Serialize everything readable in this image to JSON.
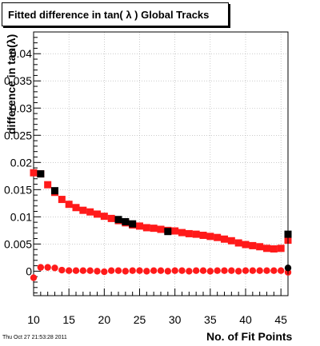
{
  "header": {
    "title": "Fitted difference in tan( λ )  Global Tracks",
    "timestamp": "Thu Oct 27 21:53:28 2011"
  },
  "colors": {
    "series_red": "#ff1a1a",
    "series_black": "#000000",
    "frame": "#000000",
    "grid": "#aaaaaa"
  },
  "chart_data": {
    "type": "scatter",
    "title": "Fitted difference in tan( λ )  Global Tracks",
    "xlabel": "No. of Fit Points",
    "ylabel": "difference in tan(λ)",
    "xlim": [
      10,
      46
    ],
    "ylim": [
      -0.0045,
      0.044
    ],
    "grid": true,
    "x_ticks": [
      10,
      15,
      20,
      25,
      30,
      35,
      40,
      45
    ],
    "x_tick_labels": [
      "10",
      "15",
      "20",
      "25",
      "30",
      "35",
      "40",
      "45"
    ],
    "y_ticks": [
      0,
      0.005,
      0.01,
      0.015,
      0.02,
      0.025,
      0.03,
      0.035,
      0.04
    ],
    "y_tick_labels": [
      "0",
      "0.005",
      "0.01",
      "0.015",
      "0.02",
      "0.025",
      "0.03",
      "0.035",
      "0.04"
    ],
    "series": [
      {
        "marker": "square",
        "color": "#ff1a1a",
        "x": [
          10,
          11,
          12,
          13,
          14,
          15,
          16,
          17,
          18,
          19,
          20,
          21,
          22,
          23,
          24,
          25,
          26,
          27,
          28,
          29,
          30,
          31,
          32,
          33,
          34,
          35,
          36,
          37,
          38,
          39,
          40,
          41,
          42,
          43,
          44,
          45,
          46
        ],
        "y": [
          0.0181,
          0.0179,
          0.0159,
          0.0145,
          0.0132,
          0.0123,
          0.0117,
          0.0112,
          0.0109,
          0.0105,
          0.0101,
          0.0097,
          0.0093,
          0.0089,
          0.0085,
          0.0083,
          0.008,
          0.0079,
          0.0077,
          0.0075,
          0.0074,
          0.0071,
          0.0069,
          0.0068,
          0.0066,
          0.0064,
          0.0062,
          0.0059,
          0.0056,
          0.0052,
          0.0049,
          0.0047,
          0.0045,
          0.0042,
          0.0041,
          0.0042,
          0.0057
        ]
      },
      {
        "marker": "square",
        "color": "#000000",
        "x": [
          11,
          13,
          22,
          23,
          24,
          29,
          46
        ],
        "y": [
          0.0179,
          0.0148,
          0.0095,
          0.0091,
          0.0087,
          0.0073,
          0.0068
        ]
      },
      {
        "marker": "circle",
        "color": "#ff1a1a",
        "x": [
          10,
          11,
          12,
          13,
          14,
          15,
          16,
          17,
          18,
          19,
          20,
          21,
          22,
          23,
          24,
          25,
          26,
          27,
          28,
          29,
          30,
          31,
          32,
          33,
          34,
          35,
          36,
          37,
          38,
          39,
          40,
          41,
          42,
          43,
          44,
          45,
          46
        ],
        "y": [
          -0.0012,
          0.0007,
          0.0007,
          0.0006,
          0.0002,
          0.0001,
          0.0001,
          0.0001,
          0.0001,
          0.0,
          -0.0001,
          0.0001,
          0.0001,
          0.0,
          0.0001,
          0.0001,
          0.0,
          0.0001,
          0.0001,
          0.0,
          0.0001,
          0.0001,
          0.0,
          0.0001,
          0.0001,
          0.0,
          0.0001,
          0.0001,
          0.0001,
          0.0,
          0.0001,
          0.0001,
          0.0001,
          0.0001,
          0.0001,
          0.0001,
          -0.0002
        ]
      },
      {
        "marker": "circle",
        "color": "#000000",
        "x": [
          46
        ],
        "y": [
          0.0006
        ]
      }
    ]
  }
}
